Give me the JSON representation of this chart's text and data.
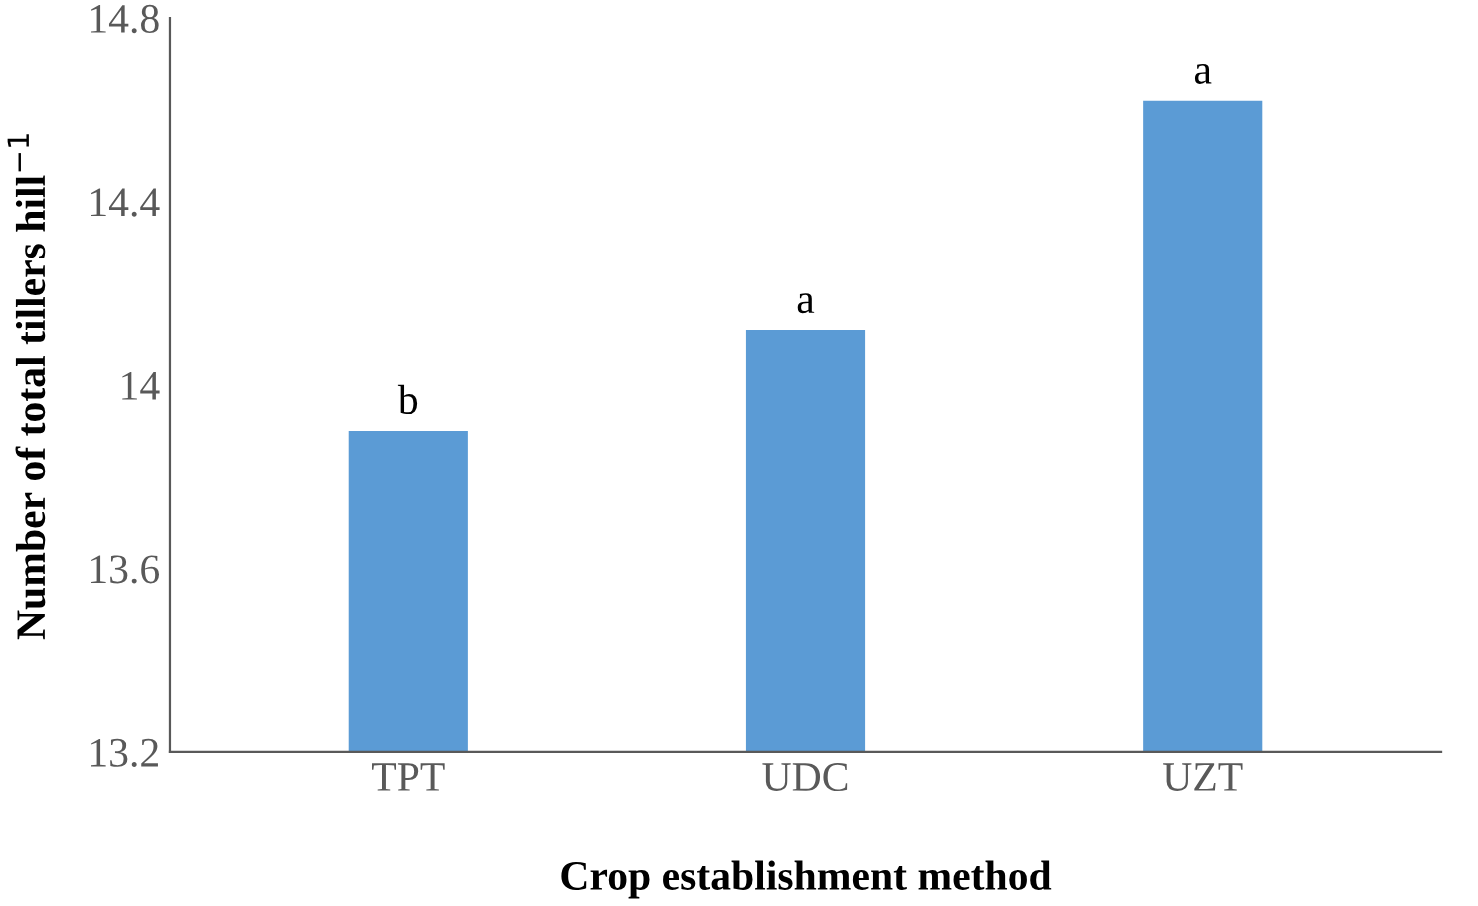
{
  "chart_data": {
    "type": "bar",
    "xlabel": "Crop establishment method",
    "ylabel": "Number of total tillers hill$^{−1}$",
    "categories": [
      "TPT",
      "UDC",
      "UZT"
    ],
    "values": [
      13.9,
      14.12,
      14.62
    ],
    "color": "#5b9bd5",
    "ylim": [
      13.2,
      14.8
    ],
    "yticks": [
      13.2,
      13.6,
      14,
      14.4,
      14.8
    ],
    "grid": false,
    "annotations": [
      {
        "text": "b",
        "x": "TPT",
        "y": 13.9
      },
      {
        "text": "a",
        "x": "UDC",
        "y": 14.12
      },
      {
        "text": "a",
        "x": "UZT",
        "y": 14.62
      }
    ]
  }
}
